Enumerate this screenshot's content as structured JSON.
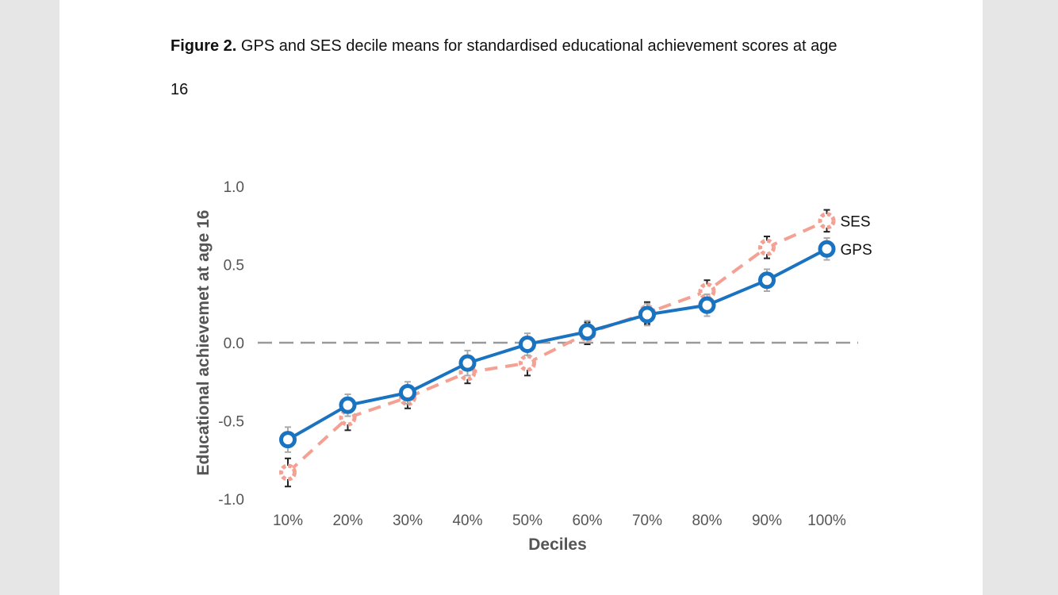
{
  "caption": {
    "label": "Figure 2.",
    "text": " GPS and SES decile means for standardised educational achievement scores at age",
    "line2": "16"
  },
  "chart_data": {
    "type": "line",
    "xlabel": "Deciles",
    "ylabel": "Educational achievemet at age 16",
    "categories": [
      "10%",
      "20%",
      "30%",
      "40%",
      "50%",
      "60%",
      "70%",
      "80%",
      "90%",
      "100%"
    ],
    "ylim": [
      -1.0,
      1.0
    ],
    "yticks": [
      "1.0",
      "0.5",
      "0.0",
      "-0.5",
      "-1.0"
    ],
    "reference_line": 0.0,
    "series": [
      {
        "name": "SES",
        "values": [
          -0.83,
          -0.48,
          -0.35,
          -0.19,
          -0.13,
          0.06,
          0.19,
          0.33,
          0.61,
          0.78
        ],
        "error": [
          0.09,
          0.08,
          0.07,
          0.07,
          0.08,
          0.07,
          0.07,
          0.07,
          0.07,
          0.07
        ],
        "color": "#f4a092",
        "style": "dashed"
      },
      {
        "name": "GPS",
        "values": [
          -0.62,
          -0.4,
          -0.32,
          -0.13,
          -0.01,
          0.07,
          0.18,
          0.24,
          0.4,
          0.6
        ],
        "error": [
          0.08,
          0.07,
          0.07,
          0.08,
          0.07,
          0.07,
          0.07,
          0.07,
          0.07,
          0.07
        ],
        "color": "#1a73c0",
        "style": "solid"
      }
    ]
  }
}
